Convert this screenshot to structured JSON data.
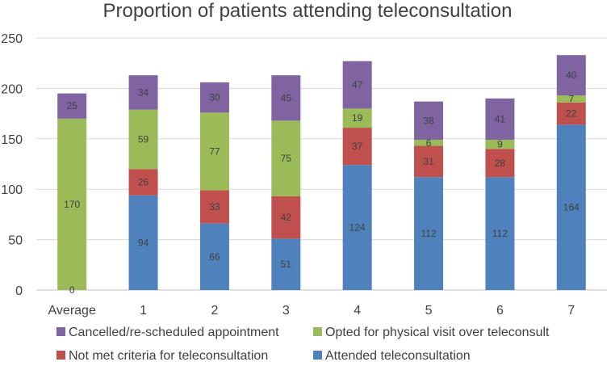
{
  "chart_data": {
    "type": "bar",
    "stacked": true,
    "title": "Proportion of patients attending teleconsultation",
    "xlabel": "",
    "ylabel": "",
    "ylim": [
      0,
      250
    ],
    "yticks": [
      0,
      50,
      100,
      150,
      200,
      250
    ],
    "grid": true,
    "legend_position": "bottom",
    "categories": [
      "Average",
      "1",
      "2",
      "3",
      "4",
      "5",
      "6",
      "7"
    ],
    "series": [
      {
        "name": "Attended teleconsultation",
        "color": "#4f81bd",
        "values": [
          0,
          94,
          66,
          51,
          124,
          112,
          112,
          164
        ]
      },
      {
        "name": "Not met criteria for teleconsultation",
        "color": "#c0504d",
        "values": [
          0,
          26,
          33,
          42,
          37,
          31,
          28,
          22
        ]
      },
      {
        "name": "Opted for physical visit over teleconsult",
        "color": "#9bbb59",
        "values": [
          170,
          59,
          77,
          75,
          19,
          6,
          9,
          7
        ]
      },
      {
        "name": "Cancelled/re-scheduled appointment",
        "color": "#8064a2",
        "values": [
          25,
          34,
          30,
          45,
          47,
          38,
          41,
          40
        ]
      }
    ],
    "legend_order": [
      3,
      2,
      1,
      0
    ]
  }
}
